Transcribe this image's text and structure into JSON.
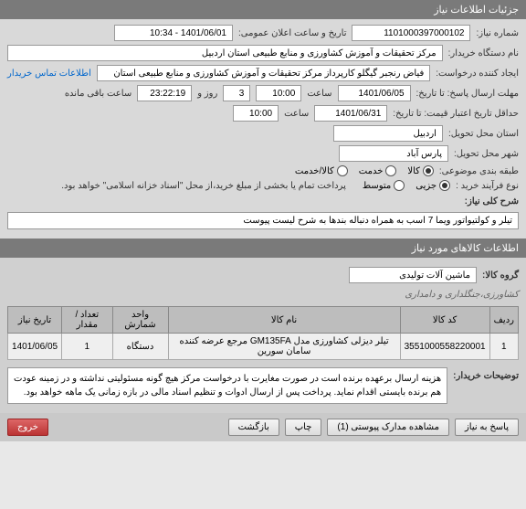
{
  "header1": "جزئیات اطلاعات نیاز",
  "r1": {
    "lbl_num": "شماره نیاز:",
    "num": "1101000397000102",
    "lbl_date": "تاریخ و ساعت اعلان عمومی:",
    "date": "1401/06/01 - 10:34"
  },
  "r2": {
    "lbl": "نام دستگاه خریدار:",
    "val": "مرکز تحقیقات و آموزش کشاورزی و منابع طبیعی استان اردبیل"
  },
  "r3": {
    "lbl": "ایجاد کننده درخواست:",
    "val": "فیاض رنجبر گیگلو کارپرداز مرکز تحقیقات و آموزش کشاورزی و منابع طبیعی استان",
    "link": "اطلاعات تماس خریدار"
  },
  "r4": {
    "lbl1": "مهلت ارسال پاسخ: تا تاریخ:",
    "date": "1401/06/05",
    "lbl_time": "ساعت",
    "time": "10:00",
    "days": "3",
    "lbl_days": "روز و",
    "remain": "23:22:19",
    "lbl_remain": "ساعت باقی مانده"
  },
  "r5": {
    "lbl": "حداقل تاریخ اعتبار قیمت: تا تاریخ:",
    "date": "1401/06/31",
    "lbl_time": "ساعت",
    "time": "10:00"
  },
  "r6": {
    "lbl": "استان محل تحویل:",
    "val": "اردبیل"
  },
  "r7": {
    "lbl": "شهر محل تحویل:",
    "val": "پارس آباد"
  },
  "r8": {
    "lbl": "طبقه بندی موضوعی:",
    "opts": [
      "کالا",
      "خدمت",
      "کالا/خدمت"
    ],
    "selected": 0
  },
  "r9": {
    "lbl": "نوع فرآیند خرید :",
    "opts": [
      "جزیی",
      "متوسط"
    ],
    "selected": 0,
    "note": "پرداخت تمام یا بخشی از مبلغ خرید،از محل \"اسناد خزانه اسلامی\" خواهد بود."
  },
  "r10": {
    "lbl": "شرح کلی نیاز:",
    "val": "تیلر و کولتیواتور ویما 7 اسب به همراه دنباله بندها به شرح لیست پیوست"
  },
  "header2": "اطلاعات کالاهای مورد نیاز",
  "group": {
    "lbl": "گروه کالا:",
    "val": "ماشین آلات تولیدی",
    "crumb": "کشاورزی،جنگلداری و دامداری"
  },
  "table": {
    "cols": [
      "ردیف",
      "کد کالا",
      "نام کالا",
      "واحد شمارش",
      "تعداد / مقدار",
      "تاریخ نیاز"
    ],
    "rows": [
      [
        "1",
        "3551000558220001",
        "تیلر دیزلی کشاورزی مدل GM135FA مرجع عرضه کننده سامان سورین",
        "دستگاه",
        "1",
        "1401/06/05"
      ]
    ]
  },
  "r11": {
    "lbl": "توضیحات خریدار:",
    "val": "هزینه ارسال برعهده برنده است در صورت مغایرت با درخواست مرکز هیچ گونه مسئولیتی نداشته و در زمینه عودت هم برنده بایستی اقدام نماید. پرداخت پس از ارسال ادوات و تنظیم اسناد مالی در بازه زمانی یک ماهه خواهد بود."
  },
  "buttons": {
    "b1": "پاسخ به نیاز",
    "b2": "مشاهده مدارک پیوستی (1)",
    "b3": "چاپ",
    "b4": "بازگشت",
    "b5": "خروج"
  }
}
